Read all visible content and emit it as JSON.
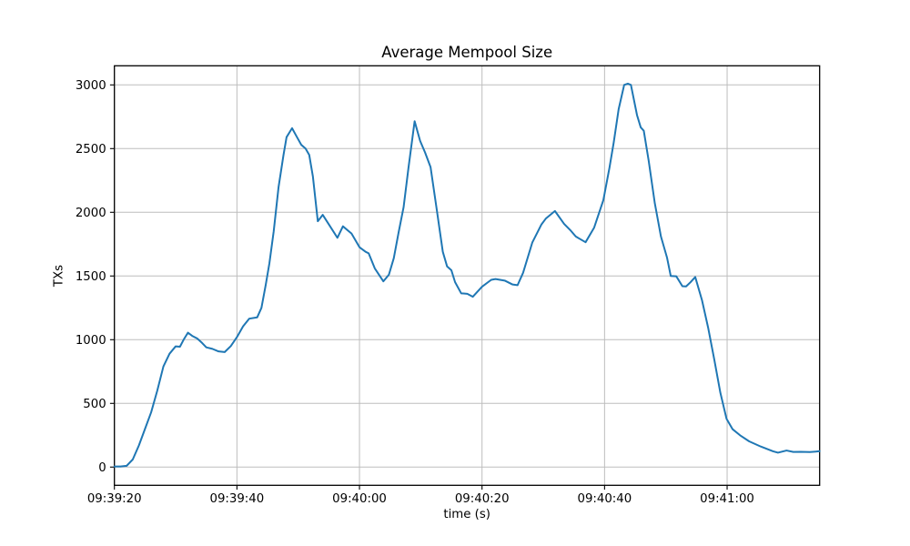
{
  "chart_data": {
    "type": "line",
    "title": "Average Mempool Size",
    "xlabel": "time (s)",
    "ylabel": "TXs",
    "x_tick_labels": [
      "09:39:20",
      "09:39:40",
      "09:40:00",
      "09:40:20",
      "09:40:40",
      "09:41:00"
    ],
    "x_tick_seconds": [
      0,
      20,
      40,
      60,
      80,
      100
    ],
    "y_ticks": [
      0,
      500,
      1000,
      1500,
      2000,
      2500,
      3000
    ],
    "x_range_seconds": [
      0,
      115.1
    ],
    "y_range": [
      -143,
      3150
    ],
    "grid": true,
    "legend_position": "none",
    "line_color": "#1f77b4",
    "grid_color": "#bdbdbd",
    "frame_color": "#000000",
    "series": [
      {
        "name": "average-mempool-size",
        "points": [
          [
            0,
            5
          ],
          [
            1,
            5
          ],
          [
            2,
            10
          ],
          [
            3,
            60
          ],
          [
            4,
            170
          ],
          [
            5,
            300
          ],
          [
            6,
            430
          ],
          [
            7,
            600
          ],
          [
            8,
            790
          ],
          [
            9,
            890
          ],
          [
            10,
            948
          ],
          [
            10.7,
            945
          ],
          [
            11.3,
            1000
          ],
          [
            12,
            1055
          ],
          [
            12.7,
            1030
          ],
          [
            13.5,
            1010
          ],
          [
            14.3,
            975
          ],
          [
            15,
            940
          ],
          [
            16,
            928
          ],
          [
            17,
            908
          ],
          [
            18,
            903
          ],
          [
            19,
            950
          ],
          [
            20,
            1020
          ],
          [
            21,
            1105
          ],
          [
            22,
            1165
          ],
          [
            23.3,
            1175
          ],
          [
            24,
            1250
          ],
          [
            24.7,
            1430
          ],
          [
            25.3,
            1600
          ],
          [
            26,
            1850
          ],
          [
            26.8,
            2200
          ],
          [
            27.6,
            2450
          ],
          [
            28.1,
            2590
          ],
          [
            29,
            2660
          ],
          [
            29.8,
            2590
          ],
          [
            30.5,
            2530
          ],
          [
            31.2,
            2500
          ],
          [
            31.8,
            2450
          ],
          [
            32.4,
            2280
          ],
          [
            33.2,
            1930
          ],
          [
            34,
            1980
          ],
          [
            35,
            1905
          ],
          [
            36.4,
            1800
          ],
          [
            37.3,
            1890
          ],
          [
            38.7,
            1833
          ],
          [
            40,
            1726
          ],
          [
            41,
            1690
          ],
          [
            41.5,
            1678
          ],
          [
            42.5,
            1560
          ],
          [
            43.9,
            1458
          ],
          [
            44.8,
            1510
          ],
          [
            45.6,
            1640
          ],
          [
            46.4,
            1845
          ],
          [
            47.2,
            2040
          ],
          [
            48,
            2350
          ],
          [
            49,
            2715
          ],
          [
            49.9,
            2560
          ],
          [
            50.7,
            2470
          ],
          [
            51.6,
            2355
          ],
          [
            52.6,
            2025
          ],
          [
            53.6,
            1690
          ],
          [
            54.3,
            1575
          ],
          [
            55,
            1545
          ],
          [
            55.6,
            1452
          ],
          [
            56.6,
            1364
          ],
          [
            57.6,
            1360
          ],
          [
            58.5,
            1337
          ],
          [
            60,
            1416
          ],
          [
            61.5,
            1470
          ],
          [
            62.2,
            1476
          ],
          [
            63.7,
            1464
          ],
          [
            65,
            1433
          ],
          [
            65.8,
            1428
          ],
          [
            66.7,
            1525
          ],
          [
            68.2,
            1762
          ],
          [
            69.7,
            1905
          ],
          [
            70.4,
            1950
          ],
          [
            71.9,
            2010
          ],
          [
            73.4,
            1909
          ],
          [
            74.5,
            1855
          ],
          [
            75.3,
            1810
          ],
          [
            76.9,
            1765
          ],
          [
            78.3,
            1880
          ],
          [
            79.8,
            2095
          ],
          [
            80.8,
            2350
          ],
          [
            81.5,
            2550
          ],
          [
            82.3,
            2810
          ],
          [
            83.2,
            3000
          ],
          [
            83.8,
            3010
          ],
          [
            84.3,
            3000
          ],
          [
            85.3,
            2762
          ],
          [
            85.9,
            2667
          ],
          [
            86.4,
            2640
          ],
          [
            87.2,
            2405
          ],
          [
            88.2,
            2071
          ],
          [
            89.2,
            1810
          ],
          [
            90.2,
            1643
          ],
          [
            90.8,
            1500
          ],
          [
            91.7,
            1498
          ],
          [
            92.7,
            1420
          ],
          [
            93.3,
            1418
          ],
          [
            94,
            1450
          ],
          [
            94.8,
            1492
          ],
          [
            95.9,
            1310
          ],
          [
            96.9,
            1095
          ],
          [
            97.9,
            845
          ],
          [
            98.9,
            583
          ],
          [
            99.9,
            380
          ],
          [
            100.9,
            297
          ],
          [
            102.1,
            250
          ],
          [
            103.6,
            202
          ],
          [
            105.5,
            161
          ],
          [
            107.5,
            124
          ],
          [
            108.3,
            113
          ],
          [
            109.7,
            130
          ],
          [
            110.8,
            119
          ],
          [
            112,
            120
          ],
          [
            113.5,
            118
          ],
          [
            114.5,
            122
          ],
          [
            115.1,
            125
          ]
        ]
      }
    ]
  }
}
